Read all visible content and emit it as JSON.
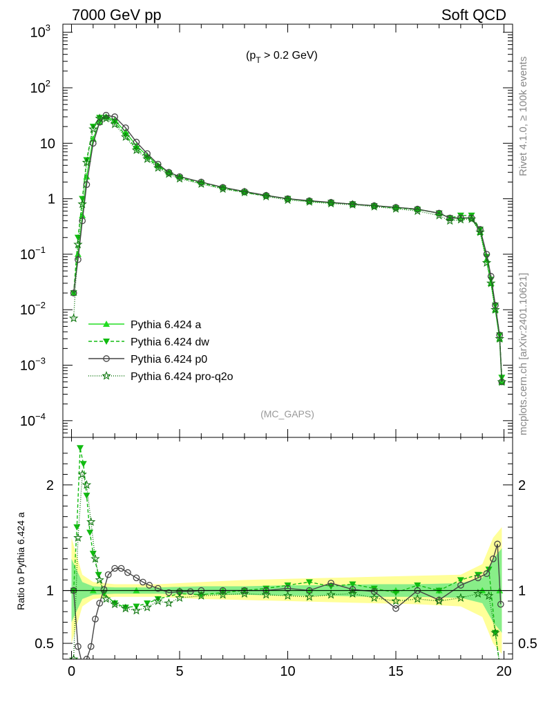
{
  "header": {
    "left": "7000 GeV pp",
    "right": "Soft QCD",
    "cut_prefix": "(p",
    "cut_sub": "T",
    "cut_suffix": " > 0.2 GeV)",
    "analysis": "(MC_GAPS)",
    "side_rivet": "Rivet 4.1.0, ≥ 100k events",
    "side_mcplots": "mcplots.cern.ch [arXiv:2401.10621]"
  },
  "colors": {
    "a": "#22dd22",
    "dw": "#11bb11",
    "p0": "#444444",
    "pro": "#117711",
    "band_inner": "#88ee88",
    "band_outer": "#ffff99"
  },
  "chart_data": [
    {
      "type": "line",
      "panel": "main",
      "ylog": true,
      "xlim": [
        -0.4,
        20.4
      ],
      "ylim": [
        5e-05,
        1400
      ],
      "xticks": [
        0,
        5,
        10,
        15,
        20
      ],
      "ytick_labels": [
        {
          "base": "10",
          "exp": "3",
          "value": 1000
        },
        {
          "base": "10",
          "exp": "2",
          "value": 100
        },
        {
          "base": "10",
          "exp": "",
          "value": 10
        },
        {
          "base": "1",
          "exp": "",
          "value": 1
        },
        {
          "base": "10",
          "exp": "−1",
          "value": 0.1
        },
        {
          "base": "10",
          "exp": "−2",
          "value": 0.01
        },
        {
          "base": "10",
          "exp": "−3",
          "value": 0.001
        },
        {
          "base": "10",
          "exp": "−4",
          "value": 0.0001
        }
      ],
      "series": [
        {
          "key": "a",
          "name": "Pythia 6.424 a",
          "x": [
            0.1,
            0.3,
            0.5,
            0.7,
            1.0,
            1.3,
            1.6,
            2.0,
            2.5,
            3.0,
            3.5,
            4.0,
            4.5,
            5.0,
            6.0,
            7.0,
            8.0,
            9.0,
            10.0,
            11.0,
            12.0,
            13.0,
            14.0,
            15.0,
            16.0,
            17.0,
            17.5,
            18.0,
            18.5,
            18.9,
            19.2,
            19.4,
            19.6,
            19.8,
            19.9
          ],
          "y": [
            0.02,
            0.1,
            0.5,
            2.5,
            12,
            24,
            30,
            26,
            16,
            9,
            6,
            4,
            3,
            2.5,
            2,
            1.6,
            1.35,
            1.15,
            1.0,
            0.9,
            0.85,
            0.8,
            0.75,
            0.7,
            0.65,
            0.55,
            0.45,
            0.45,
            0.45,
            0.25,
            0.08,
            0.03,
            0.01,
            0.003,
            0.0005
          ]
        },
        {
          "key": "dw",
          "name": "Pythia 6.424 dw",
          "x": [
            0.1,
            0.3,
            0.5,
            0.7,
            1.0,
            1.3,
            1.6,
            2.0,
            2.5,
            3.0,
            3.5,
            4.0,
            4.5,
            5.0,
            6.0,
            7.0,
            8.0,
            9.0,
            10.0,
            11.0,
            12.0,
            13.0,
            14.0,
            15.0,
            16.0,
            17.0,
            17.5,
            18.0,
            18.5,
            18.9,
            19.2,
            19.4,
            19.6,
            19.8,
            19.9
          ],
          "y": [
            0.02,
            0.2,
            1.0,
            5.0,
            20,
            29,
            29,
            24,
            14,
            8,
            5.5,
            3.8,
            2.9,
            2.4,
            1.9,
            1.55,
            1.3,
            1.12,
            1.0,
            0.9,
            0.85,
            0.8,
            0.74,
            0.68,
            0.64,
            0.55,
            0.45,
            0.5,
            0.5,
            0.28,
            0.09,
            0.035,
            0.012,
            0.0035,
            0.0006
          ]
        },
        {
          "key": "p0",
          "name": "Pythia 6.424 p0",
          "x": [
            0.1,
            0.3,
            0.5,
            0.7,
            1.0,
            1.3,
            1.6,
            2.0,
            2.5,
            3.0,
            3.5,
            4.0,
            4.5,
            5.0,
            6.0,
            7.0,
            8.0,
            9.0,
            10.0,
            11.0,
            12.0,
            13.0,
            14.0,
            15.0,
            16.0,
            17.0,
            17.5,
            18.0,
            18.5,
            18.9,
            19.2,
            19.4,
            19.6,
            19.8,
            19.9
          ],
          "y": [
            0.02,
            0.08,
            0.4,
            1.8,
            10,
            24,
            32,
            30,
            19,
            10.5,
            6.5,
            4.2,
            3.0,
            2.5,
            2.0,
            1.6,
            1.35,
            1.15,
            1.0,
            0.92,
            0.86,
            0.8,
            0.75,
            0.7,
            0.65,
            0.55,
            0.45,
            0.45,
            0.45,
            0.28,
            0.1,
            0.04,
            0.012,
            0.0035,
            0.0005
          ]
        },
        {
          "key": "pro",
          "name": "Pythia 6.424 pro-q2o",
          "x": [
            0.1,
            0.3,
            0.5,
            0.7,
            1.0,
            1.3,
            1.6,
            2.0,
            2.5,
            3.0,
            3.5,
            4.0,
            4.5,
            5.0,
            6.0,
            7.0,
            8.0,
            9.0,
            10.0,
            11.0,
            12.0,
            13.0,
            14.0,
            15.0,
            16.0,
            17.0,
            17.5,
            18.0,
            18.5,
            18.9,
            19.2,
            19.4,
            19.6,
            19.8,
            19.9
          ],
          "y": [
            0.007,
            0.15,
            0.8,
            4.5,
            18,
            28,
            28,
            22,
            13,
            7.5,
            5.2,
            3.6,
            2.8,
            2.3,
            1.85,
            1.5,
            1.3,
            1.1,
            0.95,
            0.88,
            0.82,
            0.78,
            0.72,
            0.66,
            0.6,
            0.5,
            0.4,
            0.42,
            0.43,
            0.25,
            0.07,
            0.03,
            0.01,
            0.003,
            0.0005
          ]
        }
      ]
    },
    {
      "type": "line",
      "panel": "ratio",
      "ylabel": "Ratio to Pythia 6.424 a",
      "xlim": [
        -0.4,
        20.4
      ],
      "ylim": [
        0.35,
        2.45
      ],
      "yticks": [
        0.5,
        1,
        2
      ],
      "ytick_labels": [
        "0.5",
        "1",
        "2"
      ],
      "xticks": [
        0,
        5,
        10,
        15,
        20
      ],
      "xtick_labels": [
        "0",
        "5",
        "10",
        "15",
        "20"
      ],
      "band": {
        "x": [
          0.0,
          0.5,
          1.0,
          2.0,
          4.0,
          6.0,
          8.0,
          10.0,
          12.0,
          14.0,
          16.0,
          18.0,
          19.0,
          19.5,
          19.9
        ],
        "inner_lo": [
          0.7,
          0.92,
          0.96,
          0.97,
          0.97,
          0.96,
          0.96,
          0.95,
          0.95,
          0.94,
          0.94,
          0.93,
          0.88,
          0.7,
          0.6
        ],
        "inner_hi": [
          1.3,
          1.08,
          1.04,
          1.03,
          1.03,
          1.04,
          1.04,
          1.05,
          1.05,
          1.06,
          1.06,
          1.07,
          1.12,
          1.3,
          1.4
        ],
        "outer_lo": [
          0.5,
          0.85,
          0.92,
          0.94,
          0.94,
          0.92,
          0.91,
          0.9,
          0.89,
          0.88,
          0.87,
          0.85,
          0.75,
          0.5,
          0.4
        ],
        "outer_hi": [
          1.5,
          1.15,
          1.08,
          1.06,
          1.06,
          1.08,
          1.1,
          1.11,
          1.12,
          1.13,
          1.14,
          1.15,
          1.25,
          1.5,
          1.6
        ]
      },
      "series": [
        {
          "key": "a",
          "name": "Pythia 6.424 a",
          "x": [
            0.1,
            1.0,
            3.0,
            5.0,
            7.0,
            9.0,
            11.0,
            13.0,
            15.0,
            17.0,
            19.0,
            19.8
          ],
          "y": [
            1,
            1,
            1,
            1,
            1,
            1,
            1,
            1,
            1,
            1,
            1,
            1
          ]
        },
        {
          "key": "dw",
          "name": "Pythia 6.424 dw",
          "x": [
            0.1,
            0.25,
            0.4,
            0.55,
            0.7,
            0.85,
            1.0,
            1.25,
            1.5,
            2.0,
            2.5,
            3.0,
            3.5,
            4.0,
            5.0,
            6.0,
            7.0,
            8.0,
            9.0,
            10.0,
            11.0,
            12.0,
            13.0,
            14.0,
            15.0,
            16.0,
            17.0,
            18.0,
            18.8,
            19.3,
            19.6,
            19.8
          ],
          "y": [
            1.0,
            1.6,
            2.35,
            2.2,
            1.9,
            1.55,
            1.35,
            1.15,
            0.97,
            0.88,
            0.84,
            0.85,
            0.88,
            0.92,
            0.97,
            0.96,
            0.98,
            1.0,
            1.02,
            1.05,
            1.08,
            1.04,
            1.06,
            1.02,
            0.98,
            1.05,
            1.0,
            1.1,
            1.15,
            1.2,
            0.6,
            0.3
          ]
        },
        {
          "key": "p0",
          "name": "Pythia 6.424 p0",
          "x": [
            0.1,
            0.3,
            0.5,
            0.7,
            0.9,
            1.1,
            1.3,
            1.5,
            1.7,
            2.0,
            2.3,
            2.6,
            3.0,
            3.3,
            3.6,
            4.0,
            4.5,
            5.0,
            5.5,
            6.0,
            7.0,
            8.0,
            9.0,
            10.0,
            11.0,
            12.0,
            13.0,
            14.0,
            15.0,
            16.0,
            17.0,
            18.0,
            18.8,
            19.2,
            19.5,
            19.7,
            19.85
          ],
          "y": [
            1.0,
            0.47,
            0.3,
            0.35,
            0.47,
            0.73,
            0.88,
            1.01,
            1.15,
            1.21,
            1.21,
            1.17,
            1.12,
            1.08,
            1.05,
            1.02,
            0.98,
            0.99,
            0.99,
            1.0,
            1.0,
            1.0,
            1.0,
            1.02,
            1.0,
            1.07,
            1.01,
            0.99,
            0.83,
            1.0,
            0.91,
            1.05,
            1.12,
            1.16,
            1.3,
            1.44,
            0.87
          ]
        },
        {
          "key": "pro",
          "name": "Pythia 6.424 pro-q2o",
          "x": [
            0.1,
            0.3,
            0.5,
            0.7,
            0.9,
            1.1,
            1.3,
            1.6,
            2.0,
            2.5,
            3.0,
            3.5,
            4.0,
            4.5,
            5.0,
            6.0,
            7.0,
            8.0,
            9.0,
            10.0,
            11.0,
            12.0,
            13.0,
            14.0,
            15.0,
            16.0,
            17.0,
            18.0,
            18.8,
            19.3,
            19.6,
            19.8
          ],
          "y": [
            0.35,
            1.5,
            2.1,
            2.0,
            1.65,
            1.3,
            1.1,
            0.92,
            0.87,
            0.83,
            0.81,
            0.84,
            0.9,
            0.88,
            0.93,
            0.95,
            0.96,
            0.97,
            0.96,
            0.95,
            0.94,
            0.96,
            0.97,
            0.93,
            0.9,
            0.92,
            0.9,
            0.93,
            0.97,
            0.95,
            0.6,
            0.3
          ]
        }
      ]
    }
  ]
}
